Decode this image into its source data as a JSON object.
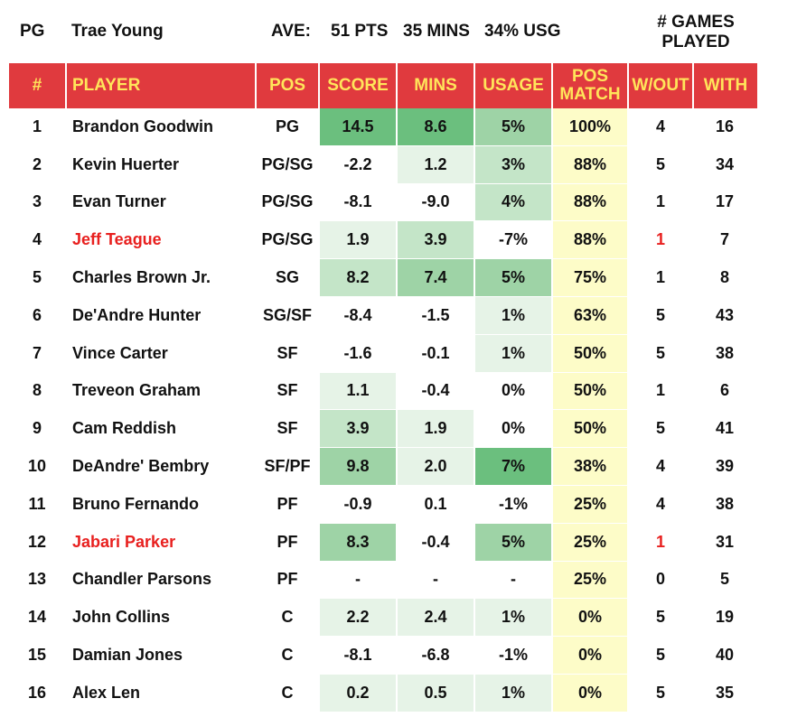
{
  "header": {
    "position": "PG",
    "player": "Trae Young",
    "ave_label": "AVE:",
    "pts": "51 PTS",
    "mins": "35 MINS",
    "usg": "34% USG",
    "games_played_line1": "# GAMES",
    "games_played_line2": "PLAYED"
  },
  "columns": [
    "#",
    "PLAYER",
    "POS",
    "SCORE",
    "MINS",
    "USAGE",
    "POS MATCH",
    "W/OUT",
    "WITH"
  ],
  "colors": {
    "header_bg": "#e03a3e",
    "header_text": "#ffe55a",
    "highlight_name": "#e8201f",
    "pos_match_bg": "#fdfcc8"
  },
  "rows": [
    {
      "rank": "1",
      "player": "Brandon Goodwin",
      "pos": "PG",
      "score": "14.5",
      "mins": "8.6",
      "usage": "5%",
      "pos_match": "100%",
      "without": "4",
      "with": "16",
      "highlight": false,
      "shades": [
        4,
        4,
        3
      ]
    },
    {
      "rank": "2",
      "player": "Kevin Huerter",
      "pos": "PG/SG",
      "score": "-2.2",
      "mins": "1.2",
      "usage": "3%",
      "pos_match": "88%",
      "without": "5",
      "with": "34",
      "highlight": false,
      "shades": [
        0,
        1,
        2
      ]
    },
    {
      "rank": "3",
      "player": "Evan Turner",
      "pos": "PG/SG",
      "score": "-8.1",
      "mins": "-9.0",
      "usage": "4%",
      "pos_match": "88%",
      "without": "1",
      "with": "17",
      "highlight": false,
      "shades": [
        0,
        0,
        2
      ]
    },
    {
      "rank": "4",
      "player": "Jeff Teague",
      "pos": "PG/SG",
      "score": "1.9",
      "mins": "3.9",
      "usage": "-7%",
      "pos_match": "88%",
      "without": "1",
      "with": "7",
      "highlight": true,
      "shades": [
        1,
        2,
        0
      ]
    },
    {
      "rank": "5",
      "player": "Charles Brown Jr.",
      "pos": "SG",
      "score": "8.2",
      "mins": "7.4",
      "usage": "5%",
      "pos_match": "75%",
      "without": "1",
      "with": "8",
      "highlight": false,
      "shades": [
        2,
        3,
        3
      ]
    },
    {
      "rank": "6",
      "player": "De'Andre Hunter",
      "pos": "SG/SF",
      "score": "-8.4",
      "mins": "-1.5",
      "usage": "1%",
      "pos_match": "63%",
      "without": "5",
      "with": "43",
      "highlight": false,
      "shades": [
        0,
        0,
        1
      ]
    },
    {
      "rank": "7",
      "player": "Vince Carter",
      "pos": "SF",
      "score": "-1.6",
      "mins": "-0.1",
      "usage": "1%",
      "pos_match": "50%",
      "without": "5",
      "with": "38",
      "highlight": false,
      "shades": [
        0,
        0,
        1
      ]
    },
    {
      "rank": "8",
      "player": "Treveon Graham",
      "pos": "SF",
      "score": "1.1",
      "mins": "-0.4",
      "usage": "0%",
      "pos_match": "50%",
      "without": "1",
      "with": "6",
      "highlight": false,
      "shades": [
        1,
        0,
        0
      ]
    },
    {
      "rank": "9",
      "player": "Cam Reddish",
      "pos": "SF",
      "score": "3.9",
      "mins": "1.9",
      "usage": "0%",
      "pos_match": "50%",
      "without": "5",
      "with": "41",
      "highlight": false,
      "shades": [
        2,
        1,
        0
      ]
    },
    {
      "rank": "10",
      "player": "DeAndre' Bembry",
      "pos": "SF/PF",
      "score": "9.8",
      "mins": "2.0",
      "usage": "7%",
      "pos_match": "38%",
      "without": "4",
      "with": "39",
      "highlight": false,
      "shades": [
        3,
        1,
        4
      ]
    },
    {
      "rank": "11",
      "player": "Bruno Fernando",
      "pos": "PF",
      "score": "-0.9",
      "mins": "0.1",
      "usage": "-1%",
      "pos_match": "25%",
      "without": "4",
      "with": "38",
      "highlight": false,
      "shades": [
        0,
        0,
        0
      ]
    },
    {
      "rank": "12",
      "player": "Jabari Parker",
      "pos": "PF",
      "score": "8.3",
      "mins": "-0.4",
      "usage": "5%",
      "pos_match": "25%",
      "without": "1",
      "with": "31",
      "highlight": true,
      "shades": [
        3,
        0,
        3
      ]
    },
    {
      "rank": "13",
      "player": "Chandler Parsons",
      "pos": "PF",
      "score": "-",
      "mins": "-",
      "usage": "-",
      "pos_match": "25%",
      "without": "0",
      "with": "5",
      "highlight": false,
      "shades": [
        0,
        0,
        0
      ]
    },
    {
      "rank": "14",
      "player": "John Collins",
      "pos": "C",
      "score": "2.2",
      "mins": "2.4",
      "usage": "1%",
      "pos_match": "0%",
      "without": "5",
      "with": "19",
      "highlight": false,
      "shades": [
        1,
        1,
        1
      ]
    },
    {
      "rank": "15",
      "player": "Damian Jones",
      "pos": "C",
      "score": "-8.1",
      "mins": "-6.8",
      "usage": "-1%",
      "pos_match": "0%",
      "without": "5",
      "with": "40",
      "highlight": false,
      "shades": [
        0,
        0,
        0
      ]
    },
    {
      "rank": "16",
      "player": "Alex Len",
      "pos": "C",
      "score": "0.2",
      "mins": "0.5",
      "usage": "1%",
      "pos_match": "0%",
      "without": "5",
      "with": "35",
      "highlight": false,
      "shades": [
        1,
        1,
        1
      ]
    }
  ]
}
